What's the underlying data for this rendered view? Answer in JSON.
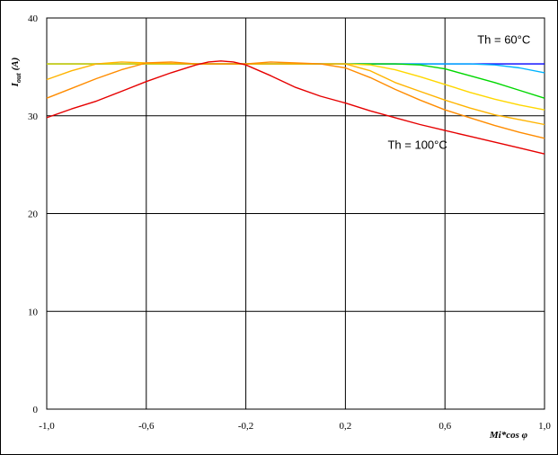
{
  "chart_data": {
    "type": "line",
    "title": "",
    "xlabel": "Mi*cos φ",
    "ylabel_main": "I",
    "ylabel_sub": "out",
    "ylabel_unit": "(A)",
    "xlim": [
      -1.0,
      1.0
    ],
    "ylim": [
      0,
      40
    ],
    "x_ticks": [
      -1.0,
      -0.6,
      -0.2,
      0.2,
      0.6,
      1.0
    ],
    "x_tick_labels": [
      "-1,0",
      "-0,6",
      "-0,2",
      "0,2",
      "0,6",
      "1,0"
    ],
    "y_ticks": [
      0,
      10,
      20,
      30,
      40
    ],
    "y_tick_labels": [
      "0",
      "10",
      "20",
      "30",
      "40"
    ],
    "grid": true,
    "annotations": [
      {
        "text": "Th = 60°C",
        "x": 0.73,
        "y": 37.4
      },
      {
        "text": "Th = 100°C",
        "x": 0.37,
        "y": 26.6
      }
    ],
    "series": [
      {
        "color": "#0000ff",
        "x": [
          -1.0,
          -0.8,
          -0.6,
          -0.4,
          -0.2,
          0.0,
          0.2,
          0.4,
          0.6,
          0.8,
          1.0
        ],
        "y": [
          35.3,
          35.3,
          35.3,
          35.3,
          35.3,
          35.3,
          35.3,
          35.3,
          35.3,
          35.3,
          35.3
        ]
      },
      {
        "color": "#00b4ff",
        "x": [
          -1.0,
          -0.8,
          -0.6,
          -0.4,
          -0.2,
          0.0,
          0.2,
          0.4,
          0.6,
          0.7,
          0.8,
          0.9,
          1.0
        ],
        "y": [
          35.3,
          35.3,
          35.3,
          35.3,
          35.3,
          35.3,
          35.3,
          35.3,
          35.3,
          35.3,
          35.2,
          34.9,
          34.4
        ]
      },
      {
        "color": "#00d700",
        "x": [
          -1.0,
          -0.8,
          -0.6,
          -0.4,
          -0.2,
          0.0,
          0.2,
          0.4,
          0.5,
          0.6,
          0.7,
          0.8,
          0.9,
          1.0
        ],
        "y": [
          35.3,
          35.3,
          35.3,
          35.3,
          35.3,
          35.3,
          35.3,
          35.3,
          35.2,
          34.8,
          34.1,
          33.4,
          32.6,
          31.8
        ]
      },
      {
        "color": "#ffd700",
        "x": [
          -1.0,
          -0.9,
          -0.8,
          -0.6,
          -0.4,
          -0.2,
          0.0,
          0.2,
          0.3,
          0.4,
          0.5,
          0.6,
          0.7,
          0.8,
          0.9,
          1.0
        ],
        "y": [
          35.3,
          35.3,
          35.3,
          35.3,
          35.3,
          35.3,
          35.3,
          35.3,
          35.2,
          34.7,
          34.0,
          33.2,
          32.4,
          31.7,
          31.1,
          30.6
        ]
      },
      {
        "color": "#ffb400",
        "x": [
          -1.0,
          -0.9,
          -0.8,
          -0.7,
          -0.6,
          -0.4,
          -0.2,
          0.0,
          0.2,
          0.3,
          0.4,
          0.5,
          0.6,
          0.7,
          0.8,
          0.9,
          1.0
        ],
        "y": [
          33.7,
          34.6,
          35.3,
          35.5,
          35.4,
          35.3,
          35.3,
          35.3,
          35.3,
          34.6,
          33.4,
          32.5,
          31.6,
          30.8,
          30.1,
          29.6,
          29.1
        ]
      },
      {
        "color": "#ff8c00",
        "x": [
          -1.0,
          -0.9,
          -0.8,
          -0.7,
          -0.6,
          -0.5,
          -0.4,
          -0.2,
          -0.1,
          0.0,
          0.1,
          0.2,
          0.3,
          0.4,
          0.5,
          0.6,
          0.7,
          0.8,
          0.9,
          1.0
        ],
        "y": [
          31.8,
          32.8,
          33.8,
          34.7,
          35.4,
          35.5,
          35.3,
          35.3,
          35.5,
          35.4,
          35.3,
          34.9,
          33.9,
          32.7,
          31.6,
          30.6,
          29.8,
          29.0,
          28.3,
          27.7
        ]
      },
      {
        "color": "#e60000",
        "x": [
          -1.0,
          -0.9,
          -0.8,
          -0.7,
          -0.6,
          -0.5,
          -0.4,
          -0.35,
          -0.3,
          -0.25,
          -0.2,
          -0.1,
          0.0,
          0.1,
          0.2,
          0.3,
          0.4,
          0.5,
          0.6,
          0.7,
          0.8,
          0.9,
          1.0
        ],
        "y": [
          29.8,
          30.7,
          31.5,
          32.5,
          33.5,
          34.4,
          35.2,
          35.5,
          35.6,
          35.5,
          35.2,
          34.1,
          32.9,
          32.0,
          31.3,
          30.5,
          29.8,
          29.1,
          28.5,
          27.9,
          27.3,
          26.7,
          26.1
        ]
      }
    ]
  }
}
